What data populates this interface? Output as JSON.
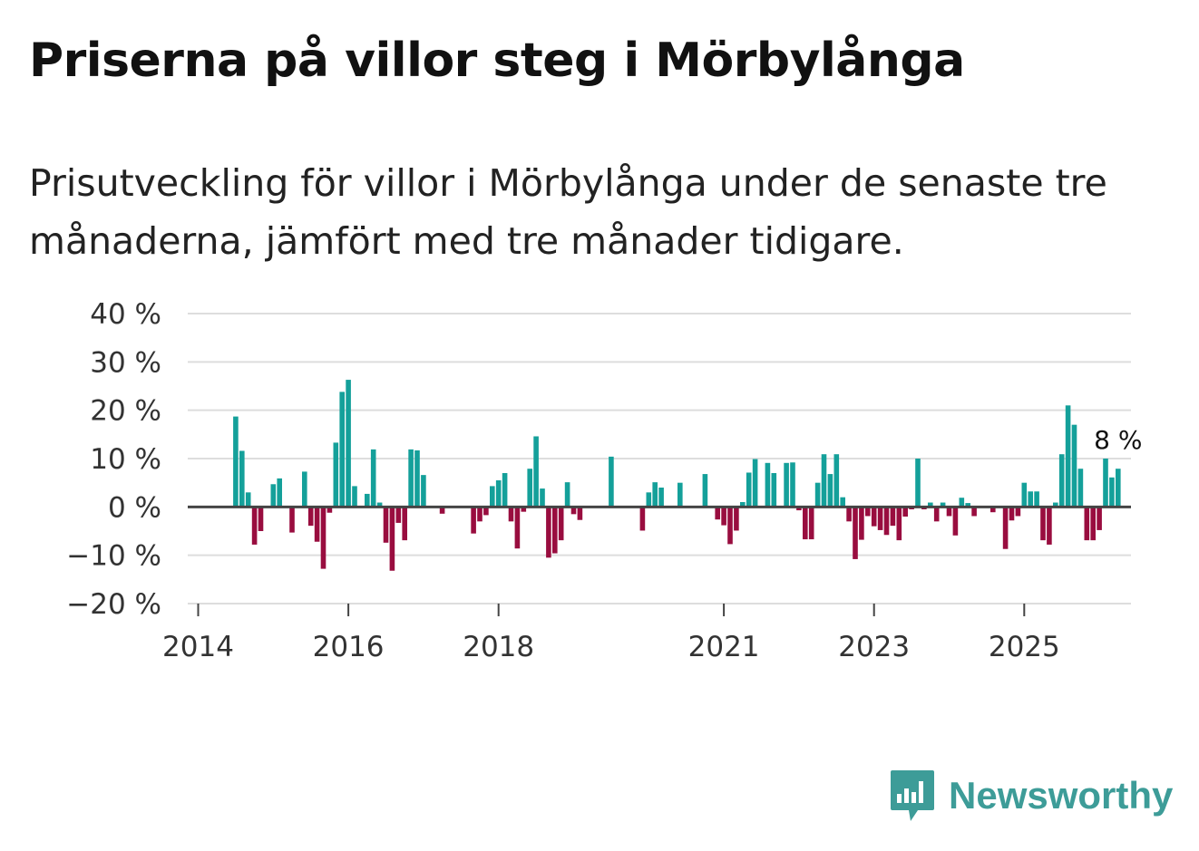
{
  "title": "Priserna på villor steg i Mörbylånga",
  "subtitle": "Prisutveckling för villor i Mörbylånga under de senaste tre månaderna, jämfört med tre månader tidigare.",
  "brand": {
    "name": "Newsworthy",
    "icon": "bar-chart-speech-bubble-icon"
  },
  "colors": {
    "positive": "#14a09a",
    "negative": "#990d3f",
    "grid": "#dddddd",
    "zero": "#444444",
    "brand": "#3d9c98"
  },
  "chart_data": {
    "type": "bar",
    "ylabel": "",
    "xlabel": "",
    "ylim": [
      -20,
      40
    ],
    "y_ticks": [
      {
        "value": 40,
        "label": "40 %"
      },
      {
        "value": 30,
        "label": "30 %"
      },
      {
        "value": 20,
        "label": "20 %"
      },
      {
        "value": 10,
        "label": "10 %"
      },
      {
        "value": 0,
        "label": "0 %"
      },
      {
        "value": -10,
        "label": "−10 %"
      },
      {
        "value": -20,
        "label": "−20 %"
      }
    ],
    "x_ticks": [
      {
        "year": 2014,
        "index": 0,
        "label": "2014"
      },
      {
        "year": 2016,
        "index": 24,
        "label": "2016"
      },
      {
        "year": 2018,
        "index": 48,
        "label": "2018"
      },
      {
        "year": 2021,
        "index": 84,
        "label": "2021"
      },
      {
        "year": 2023,
        "index": 108,
        "label": "2023"
      },
      {
        "year": 2025,
        "index": 132,
        "label": "2025"
      }
    ],
    "start": "2014-01",
    "values": [
      null,
      null,
      null,
      null,
      null,
      null,
      18.7,
      11.6,
      3.0,
      -7.8,
      -5.0,
      null,
      4.7,
      5.9,
      null,
      -5.3,
      null,
      7.3,
      -3.9,
      -7.2,
      -12.8,
      -1.2,
      13.3,
      23.8,
      26.3,
      4.3,
      null,
      2.7,
      11.9,
      0.9,
      -7.4,
      -13.2,
      -3.3,
      -6.9,
      11.9,
      11.7,
      6.6,
      null,
      null,
      -1.4,
      null,
      null,
      null,
      null,
      -5.5,
      -3.0,
      -1.7,
      4.3,
      5.5,
      7.0,
      -3.0,
      -8.6,
      -1.0,
      7.9,
      14.6,
      3.8,
      -10.5,
      -9.6,
      -6.9,
      5.1,
      -1.5,
      -2.7,
      null,
      null,
      null,
      null,
      10.4,
      null,
      null,
      null,
      null,
      -4.9,
      3.0,
      5.1,
      4.0,
      null,
      null,
      5.0,
      null,
      null,
      null,
      6.8,
      null,
      -2.6,
      -3.8,
      -7.7,
      -4.9,
      1.0,
      7.1,
      9.9,
      null,
      9.1,
      7.0,
      null,
      9.1,
      9.2,
      -0.7,
      -6.7,
      -6.7,
      5.0,
      10.9,
      6.8,
      10.9,
      2.0,
      -3.0,
      -10.8,
      -6.8,
      -1.9,
      -4.0,
      -4.8,
      -5.8,
      -3.9,
      -6.9,
      -2.0,
      -0.5,
      10.0,
      -0.5,
      0.9,
      -3.0,
      0.9,
      -1.9,
      -5.9,
      1.9,
      0.8,
      -1.9,
      null,
      null,
      -1.1,
      null,
      -8.7,
      -2.8,
      -1.9,
      5.0,
      3.2,
      3.2,
      -6.9,
      -7.8,
      0.9,
      10.9,
      21.0,
      17.0,
      7.9,
      -6.9,
      -6.9,
      -4.8,
      10.0,
      6.1,
      7.9
    ],
    "last_value_label": "8 %"
  }
}
